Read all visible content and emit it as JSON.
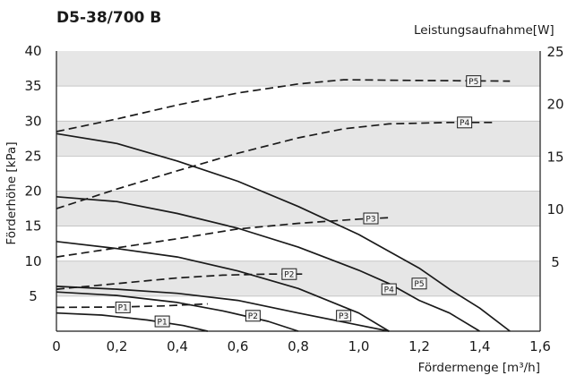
{
  "chart_data": {
    "type": "line",
    "title": "D5-38/700 B",
    "xlabel": "Fördermenge [m³/h]",
    "ylabel_left": "Förderhöhe [kPa]",
    "ylabel_right": "Leistungsaufnahme[W]",
    "xlim": [
      0,
      1.6
    ],
    "ylim_left": [
      0,
      40
    ],
    "ylim_right": [
      0,
      25
    ],
    "x_ticks": [
      "0",
      "0,2",
      "0,4",
      "0,6",
      "0,8",
      "1,0",
      "1,2",
      "1,4",
      "1,6"
    ],
    "y_left_ticks": [
      "5",
      "10",
      "15",
      "20",
      "25",
      "30",
      "35",
      "40"
    ],
    "y_right_ticks": [
      "5",
      "10",
      "15",
      "20",
      "25"
    ],
    "grid": "horizontal bands",
    "band_color": "#e6e6e6",
    "line_color": "#1a1a1a",
    "head_series": [
      {
        "name": "P1",
        "axis": "left",
        "style": "solid",
        "points": [
          [
            0,
            2.6
          ],
          [
            0.15,
            2.3
          ],
          [
            0.3,
            1.6
          ],
          [
            0.42,
            0.8
          ],
          [
            0.5,
            0
          ]
        ],
        "label_at": [
          0.35,
          1.4
        ]
      },
      {
        "name": "P2",
        "axis": "left",
        "style": "solid",
        "points": [
          [
            0,
            5.6
          ],
          [
            0.2,
            5.1
          ],
          [
            0.4,
            4.1
          ],
          [
            0.55,
            2.9
          ],
          [
            0.7,
            1.4
          ],
          [
            0.8,
            0
          ]
        ],
        "label_at": [
          0.65,
          2.2
        ]
      },
      {
        "name": "P3",
        "axis": "left",
        "style": "solid",
        "points": [
          [
            0,
            6.4
          ],
          [
            0.2,
            6.0
          ],
          [
            0.4,
            5.4
          ],
          [
            0.6,
            4.4
          ],
          [
            0.8,
            2.6
          ],
          [
            1.1,
            0
          ]
        ],
        "label_at": [
          0.95,
          2.2
        ]
      },
      {
        "name": "P4",
        "axis": "left",
        "style": "solid",
        "points": [
          [
            0,
            19.2
          ],
          [
            0.2,
            18.5
          ],
          [
            0.4,
            16.8
          ],
          [
            0.6,
            14.7
          ],
          [
            0.8,
            12.0
          ],
          [
            1.0,
            8.7
          ],
          [
            1.1,
            6.8
          ],
          [
            1.2,
            4.4
          ],
          [
            1.3,
            2.6
          ],
          [
            1.4,
            0
          ]
        ],
        "label_at": [
          1.1,
          6.0
        ]
      },
      {
        "name": "P5",
        "axis": "left",
        "style": "solid",
        "points": [
          [
            0,
            28.2
          ],
          [
            0.2,
            26.8
          ],
          [
            0.4,
            24.3
          ],
          [
            0.6,
            21.4
          ],
          [
            0.8,
            17.8
          ],
          [
            1.0,
            13.8
          ],
          [
            1.2,
            9.0
          ],
          [
            1.3,
            6.0
          ],
          [
            1.4,
            3.3
          ],
          [
            1.5,
            0
          ]
        ],
        "label_at": [
          1.2,
          6.8
        ]
      },
      {
        "name": "",
        "axis": "left",
        "style": "solid",
        "points": [
          [
            0,
            12.8
          ],
          [
            0.2,
            11.8
          ],
          [
            0.4,
            10.6
          ],
          [
            0.6,
            8.6
          ],
          [
            0.8,
            6.1
          ],
          [
            1.0,
            2.6
          ],
          [
            1.1,
            0
          ]
        ]
      }
    ],
    "power_series": [
      {
        "name": "P1",
        "axis": "right",
        "style": "dashed",
        "points": [
          [
            0,
            3.4
          ],
          [
            0.2,
            3.45
          ],
          [
            0.35,
            3.6
          ],
          [
            0.5,
            3.9
          ]
        ],
        "label_at": [
          0.22,
          3.4
        ]
      },
      {
        "name": "P2",
        "axis": "right",
        "style": "dashed",
        "points": [
          [
            0,
            6.0
          ],
          [
            0.2,
            6.8
          ],
          [
            0.4,
            7.6
          ],
          [
            0.55,
            8.0
          ],
          [
            0.7,
            8.15
          ],
          [
            0.82,
            8.15
          ]
        ],
        "label_at": [
          0.77,
          8.15
        ]
      },
      {
        "name": "P3",
        "axis": "right",
        "style": "dashed",
        "points": [
          [
            0,
            10.6
          ],
          [
            0.2,
            11.9
          ],
          [
            0.4,
            13.2
          ],
          [
            0.6,
            14.6
          ],
          [
            0.8,
            15.4
          ],
          [
            1.0,
            16.0
          ],
          [
            1.1,
            16.2
          ]
        ],
        "label_at": [
          1.04,
          16.1
        ]
      },
      {
        "name": "P4",
        "axis": "right",
        "style": "dashed",
        "points": [
          [
            0,
            17.5
          ],
          [
            0.2,
            20.3
          ],
          [
            0.4,
            22.9
          ],
          [
            0.6,
            25.4
          ],
          [
            0.8,
            27.6
          ],
          [
            0.95,
            28.9
          ],
          [
            1.1,
            29.6
          ],
          [
            1.3,
            29.8
          ],
          [
            1.45,
            29.8
          ]
        ],
        "label_at": [
          1.35,
          29.8
        ]
      },
      {
        "name": "P5",
        "axis": "right",
        "style": "dashed",
        "points": [
          [
            0,
            28.5
          ],
          [
            0.2,
            30.3
          ],
          [
            0.4,
            32.3
          ],
          [
            0.6,
            34.0
          ],
          [
            0.8,
            35.3
          ],
          [
            0.95,
            35.9
          ],
          [
            1.2,
            35.8
          ],
          [
            1.5,
            35.7
          ]
        ],
        "label_at": [
          1.38,
          35.7
        ]
      }
    ]
  }
}
